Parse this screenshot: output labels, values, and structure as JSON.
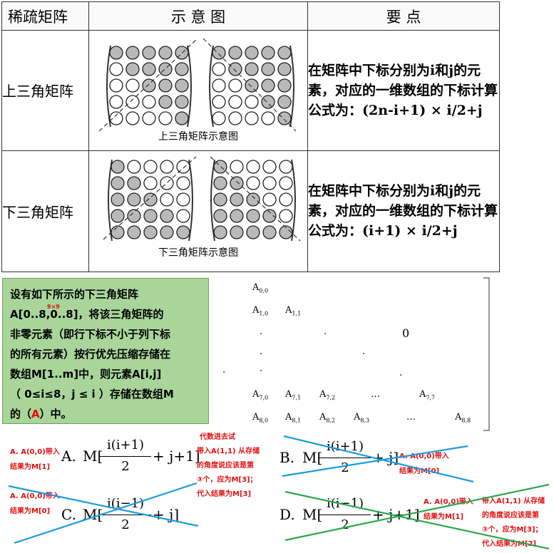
{
  "table": {
    "headers": [
      "稀疏矩阵",
      "示 意 图",
      "要    点"
    ],
    "rows": [
      {
        "label": "上三角矩阵",
        "caption": "上三角矩阵示意图",
        "note": "在矩阵中下标分别为i和j的元素，对应的一维数组的下标计算公式为：(2n-i+1) × i/2+j"
      },
      {
        "label": "下三角矩阵",
        "caption": "下三角矩阵示意图",
        "note": "在矩阵中下标分别为i和j的元素，对应的一维数组的下标计算公式为：(i+1) × i/2+j"
      }
    ]
  },
  "problem": {
    "line1": "设有如下所示的下三角矩阵",
    "line2": "A[0..8,0..8]，将该三角矩阵的",
    "superscript": "9×9",
    "line3": "非零元素（即行下标不小于列下标",
    "line4": "的所有元素）按行优先压缩存储在",
    "line5": "数组M[1..m]中，则元素A[i,j]",
    "line6": "（  0≤i≤8，j ≤ i ）存储在数组M",
    "line7_prefix": "的（",
    "answer": "A",
    "line7_suffix": "）中。"
  },
  "matrix": {
    "r0": [
      "A",
      "0,0"
    ],
    "r1": [
      [
        "A",
        "1,0"
      ],
      [
        "A",
        "1,1"
      ]
    ],
    "zero": "0",
    "dot": ".",
    "ellipsis": "…",
    "r7": [
      [
        "A",
        "7,0"
      ],
      [
        "A",
        "7,1"
      ],
      [
        "A",
        "7,2"
      ],
      [
        "A",
        "7,7"
      ]
    ],
    "r8": [
      [
        "A",
        "8,0"
      ],
      [
        "A",
        "8,1"
      ],
      [
        "A",
        "8,2"
      ],
      [
        "A",
        "8,3"
      ],
      [
        "A",
        "8,8"
      ]
    ]
  },
  "options": {
    "A": {
      "letter": "A.",
      "prefix": "M[",
      "num": "i(i+1)",
      "den": "2",
      "suffix": "+ j+1]"
    },
    "B": {
      "letter": "B.",
      "prefix": "M[",
      "num": "i(i+1)",
      "den": "2",
      "suffix": "+ j]"
    },
    "C": {
      "letter": "C.",
      "prefix": "M[",
      "num": "i(i−1)",
      "den": "2",
      "suffix": "+ j]"
    },
    "D": {
      "letter": "D.",
      "prefix": "M[",
      "num": "i(i−1)",
      "den": "2",
      "suffix": "+ j+1]"
    }
  },
  "notes": {
    "a_left_1": "A. A(0,0)带入",
    "a_left_2": "结果为M[1]",
    "a_right_1": "代数进去试",
    "a_right_2": "带入A(1,1) 从存储",
    "a_right_3": "的角度说应该是第",
    "a_right_4": "③个，应为M[3]；",
    "a_right_5": "代入结果为M[3]",
    "c_1": "A. A(0,0)带入",
    "c_2": "结果为M[0]",
    "b_1": "A. A(0,0)带入",
    "b_2": "结果为M[0]",
    "d_1": "A. A(0,0)带入",
    "d_2": "结果为M[1]",
    "d_3": "带入A(1,1) 从存储",
    "d_4": "的角度说应该是第",
    "d_5": "③个，应为M[3]；",
    "d_6": "代入结果为M[2]"
  },
  "colors": {
    "problem_bg": "#a9d59b",
    "annotation": "#e01010",
    "cross_blue": "#1a9be0",
    "cross_green": "#2aa84a",
    "filled_dot": "#b9b9b9"
  }
}
